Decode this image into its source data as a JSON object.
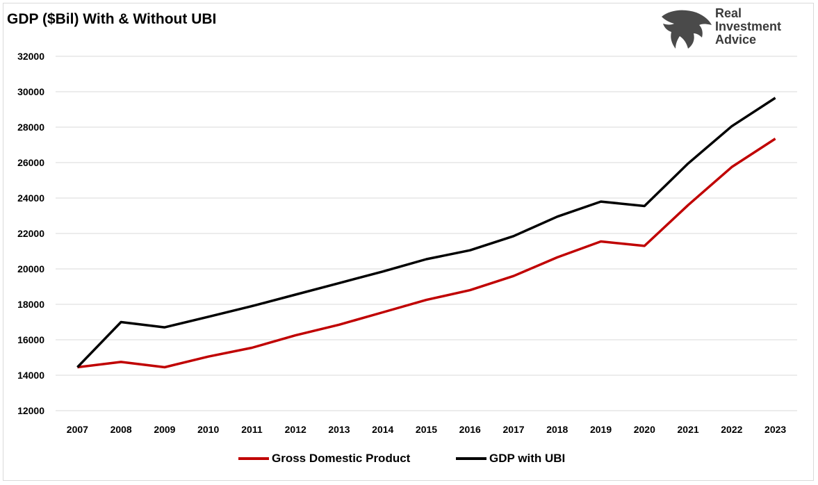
{
  "logo": {
    "lines": [
      "Real",
      "Investment",
      "Advice"
    ],
    "icon": "eagle-head-icon"
  },
  "chart_data": {
    "type": "line",
    "title": "GDP ($Bil) With & Without UBI",
    "xlabel": "",
    "ylabel": "",
    "categories": [
      "2007",
      "2008",
      "2009",
      "2010",
      "2011",
      "2012",
      "2013",
      "2014",
      "2015",
      "2016",
      "2017",
      "2018",
      "2019",
      "2020",
      "2021",
      "2022",
      "2023"
    ],
    "ylim": [
      12000,
      32000
    ],
    "yticks": [
      12000,
      14000,
      16000,
      18000,
      20000,
      22000,
      24000,
      26000,
      28000,
      30000,
      32000
    ],
    "grid": true,
    "legend_position": "bottom",
    "series": [
      {
        "name": "Gross Domestic Product",
        "color": "#c00000",
        "values": [
          14450,
          14750,
          14450,
          15050,
          15550,
          16250,
          16850,
          17550,
          18250,
          18800,
          19600,
          20650,
          21550,
          21300,
          23600,
          25750,
          27350
        ]
      },
      {
        "name": "GDP with UBI",
        "color": "#000000",
        "values": [
          14450,
          17000,
          16700,
          17300,
          17900,
          18550,
          19200,
          19850,
          20550,
          21050,
          21850,
          22950,
          23800,
          23550,
          25950,
          28050,
          29650
        ]
      }
    ]
  }
}
